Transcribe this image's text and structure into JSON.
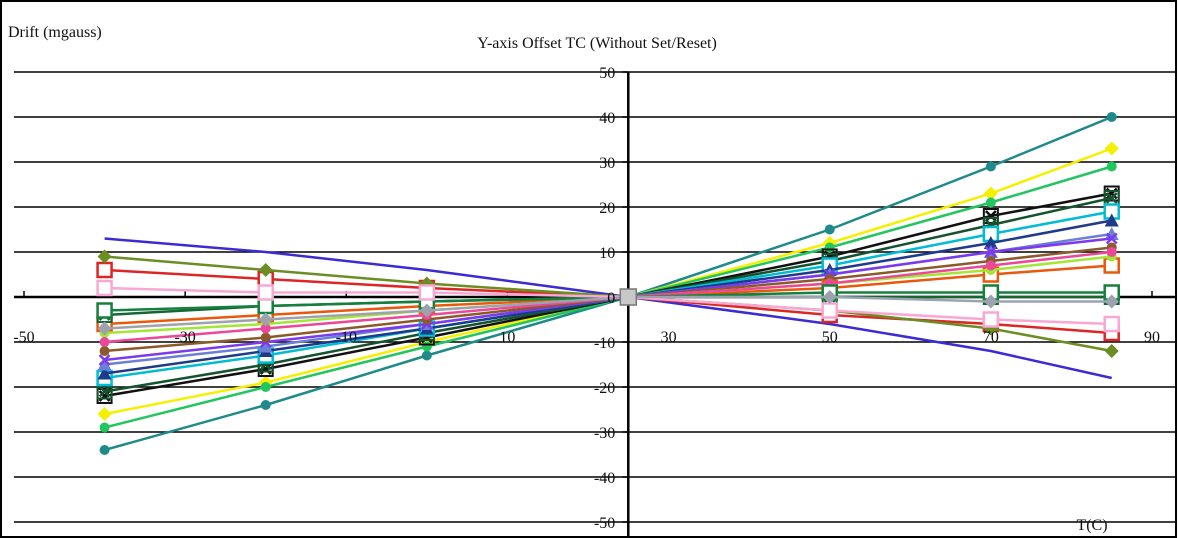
{
  "chart_data": {
    "type": "line",
    "title": "Y-axis Offset TC (Without Set/Reset)",
    "ylabel": "Drift (mgauss)",
    "xlabel": "T(C)",
    "xlim": [
      -50,
      90
    ],
    "ylim": [
      -50,
      50
    ],
    "x_ticks": [
      -50,
      -30,
      -10,
      10,
      30,
      50,
      70,
      90
    ],
    "x_tick_labels": [
      "-50",
      "-30",
      "-10",
      "10",
      "30",
      "50",
      "70",
      "90"
    ],
    "y_ticks": [
      -50,
      -40,
      -30,
      -20,
      -10,
      0,
      10,
      20,
      30,
      40,
      50
    ],
    "y_tick_labels": [
      "-50",
      "-40",
      "-30",
      "-20",
      "-10",
      "0",
      "10",
      "20",
      "30",
      "40",
      "50"
    ],
    "grid": true,
    "x": [
      -40,
      -20,
      0,
      25,
      50,
      70,
      85
    ],
    "series": [
      {
        "color": "#1f8a8a",
        "marker": "circle",
        "values": [
          -34,
          -24,
          -13,
          0,
          15,
          29,
          40
        ]
      },
      {
        "color": "#f5f000",
        "marker": "diamond",
        "values": [
          -26,
          -19,
          -10,
          0,
          12,
          23,
          33
        ]
      },
      {
        "color": "#22c55e",
        "marker": "circle",
        "values": [
          -29,
          -20,
          -11,
          0,
          11,
          21,
          29
        ]
      },
      {
        "color": "#111111",
        "marker": "x-square",
        "values": [
          -22,
          -16,
          -9,
          0,
          9,
          18,
          23
        ]
      },
      {
        "color": "#14532d",
        "marker": "x-square",
        "values": [
          -21,
          -15,
          -8,
          0,
          8,
          16,
          22
        ]
      },
      {
        "color": "#00bcd4",
        "marker": "square",
        "values": [
          -18,
          -13,
          -7,
          0,
          7,
          14,
          19
        ]
      },
      {
        "color": "#1e3a8a",
        "marker": "triangle",
        "values": [
          -17,
          -12,
          -7,
          0,
          6,
          12,
          17
        ]
      },
      {
        "color": "#6b7fd6",
        "marker": "triangle",
        "values": [
          -15,
          -11,
          -6,
          0,
          5,
          10,
          14
        ]
      },
      {
        "color": "#7c3aed",
        "marker": "x",
        "values": [
          -14,
          -10,
          -6,
          0,
          5,
          10,
          13
        ]
      },
      {
        "color": "#8b5a2b",
        "marker": "circle",
        "values": [
          -12,
          -9,
          -5,
          0,
          4,
          8,
          11
        ]
      },
      {
        "color": "#ea580c",
        "marker": "square",
        "values": [
          -6,
          -4,
          -2,
          0,
          2,
          5,
          7
        ]
      },
      {
        "color": "#a3e635",
        "marker": "circle",
        "values": [
          -8,
          -6,
          -3,
          0,
          3,
          6,
          9
        ]
      },
      {
        "color": "#ec4899",
        "marker": "circle",
        "values": [
          -10,
          -7,
          -4,
          0,
          3,
          7,
          10
        ]
      },
      {
        "color": "#166534",
        "marker": "x-square",
        "values": [
          -4,
          -2,
          -1,
          0,
          0,
          0,
          0
        ]
      },
      {
        "color": "#15803d",
        "marker": "square",
        "values": [
          -3,
          -2,
          -1,
          0,
          1,
          1,
          1
        ]
      },
      {
        "color": "#3b2bd4",
        "marker": "none",
        "values": [
          13,
          10,
          6,
          0,
          -6,
          -12,
          -18
        ]
      },
      {
        "color": "#dc2626",
        "marker": "square",
        "values": [
          6,
          4,
          2,
          0,
          -4,
          -6,
          -8
        ]
      },
      {
        "color": "#6b8e23",
        "marker": "diamond",
        "values": [
          9,
          6,
          3,
          0,
          -3,
          -7,
          -12
        ]
      },
      {
        "color": "#f9a8d4",
        "marker": "square",
        "values": [
          2,
          1,
          1,
          0,
          -3,
          -5,
          -6
        ]
      },
      {
        "color": "#9ca3af",
        "marker": "diamond",
        "values": [
          -7,
          -5,
          -3,
          0,
          0,
          -1,
          -1
        ]
      }
    ]
  }
}
